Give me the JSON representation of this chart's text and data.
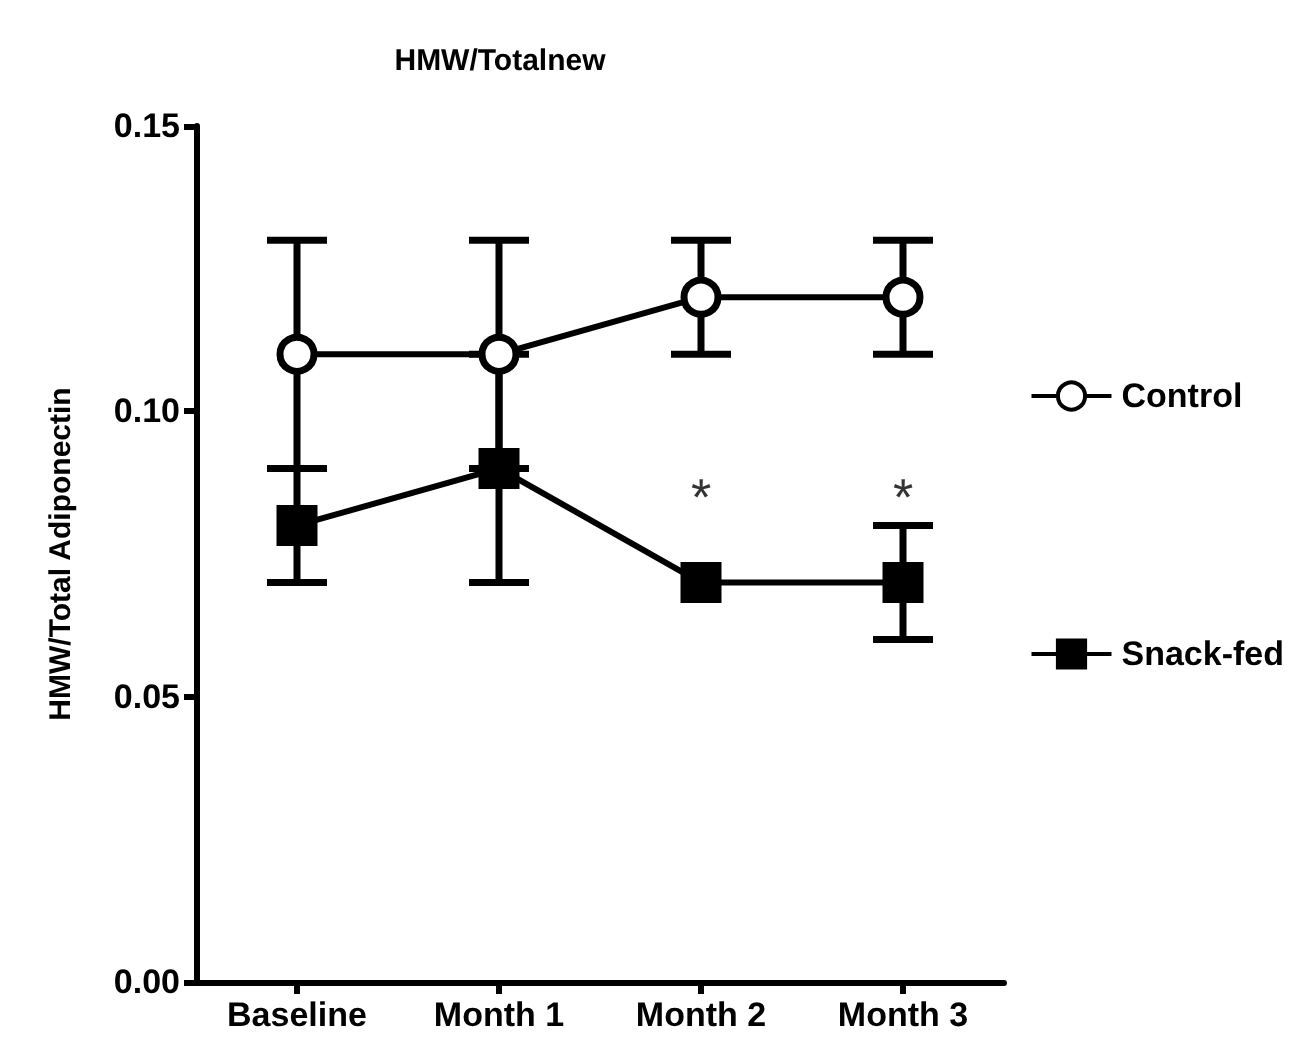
{
  "chart_data": {
    "type": "line",
    "title": "HMW/Totalnew",
    "ylabel": "HMW/Total Adiponectin",
    "categories": [
      "Baseline",
      "Month 1",
      "Month 2",
      "Month 3"
    ],
    "series": [
      {
        "name": "Control",
        "color": "#000000",
        "marker": "circle",
        "values": [
          0.11,
          0.11,
          0.12,
          0.12
        ],
        "errors": [
          0.02,
          0.02,
          0.01,
          0.01
        ]
      },
      {
        "name": "Snack-fed",
        "color": "#000000",
        "marker": "square",
        "values": [
          0.08,
          0.09,
          0.07,
          0.07
        ],
        "errors": [
          0.01,
          0.02,
          null,
          0.01
        ]
      }
    ],
    "ylim": [
      0,
      0.15
    ],
    "yticks": [
      {
        "value": 0,
        "label": "0.00"
      },
      {
        "value": 0.05,
        "label": "0.05"
      },
      {
        "value": 0.1,
        "label": "0.10"
      },
      {
        "value": 0.15,
        "label": "0.15"
      }
    ],
    "annotations": [
      {
        "text": "*",
        "x": "Month 2",
        "y": 0.07
      },
      {
        "text": "*",
        "x": "Month 3",
        "y": 0.07
      }
    ],
    "grid": false,
    "legend": "right",
    "line_style": "solid"
  }
}
